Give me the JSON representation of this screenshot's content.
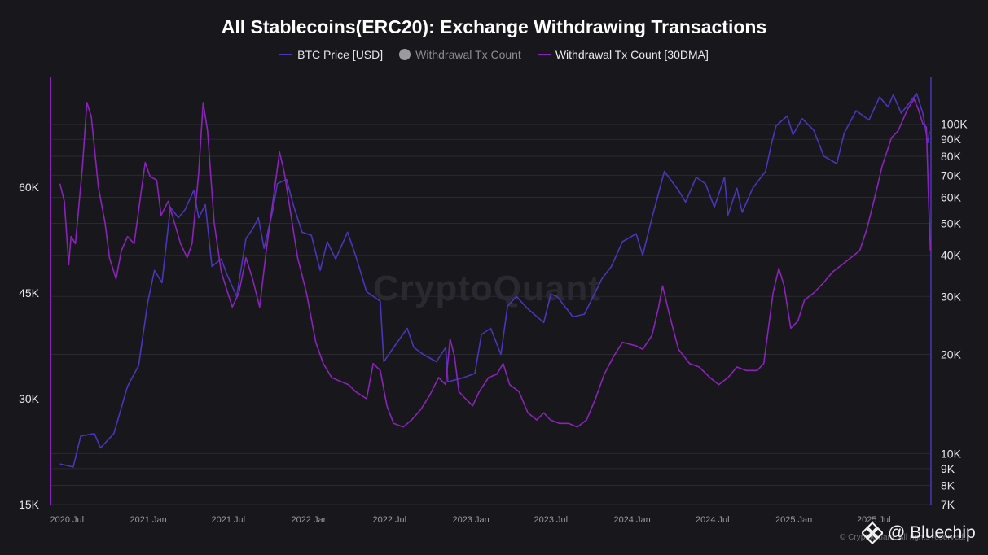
{
  "chart_data": {
    "type": "line",
    "title": "All Stablecoins(ERC20): Exchange Withdrawing Transactions",
    "legend": {
      "placement": "top-center",
      "entries": [
        {
          "label": "BTC Price [USD]",
          "color": "#4a36b8",
          "visible": true
        },
        {
          "label": "Withdrawal Tx Count",
          "color": "#9a9a9f",
          "visible": false
        },
        {
          "label": "Withdrawal Tx Count [30DMA]",
          "color": "#8a24b8",
          "visible": true
        }
      ]
    },
    "x_axis": {
      "type": "date",
      "ticks": [
        "2020 Jul",
        "2021 Jan",
        "2021 Jul",
        "2022 Jan",
        "2022 Jul",
        "2023 Jan",
        "2023 Jul",
        "2024 Jan",
        "2024 Jul",
        "2025 Jan",
        "2025 Jul"
      ],
      "range": [
        "2020-06-01",
        "2025-10-31"
      ]
    },
    "left_axis": {
      "series": "Withdrawal Tx Count [30DMA]",
      "scale": "linear",
      "ticks": [
        "15K",
        "30K",
        "45K",
        "60K"
      ],
      "tick_values": [
        15000,
        30000,
        45000,
        60000
      ],
      "ylim": [
        15000,
        75000
      ]
    },
    "right_axis": {
      "series": "BTC Price [USD]",
      "scale": "log",
      "ticks": [
        "7K",
        "8K",
        "9K",
        "10K",
        "20K",
        "30K",
        "40K",
        "50K",
        "60K",
        "70K",
        "80K",
        "90K",
        "100K"
      ],
      "tick_values": [
        7000,
        8000,
        9000,
        10000,
        20000,
        30000,
        40000,
        50000,
        60000,
        70000,
        80000,
        90000,
        100000
      ],
      "ylim": [
        7000,
        135000
      ]
    },
    "grid": true,
    "series": [
      {
        "name": "BTC Price [USD]",
        "axis": "right",
        "color": "#4a36b8",
        "points": [
          [
            "2020-06-15",
            9300
          ],
          [
            "2020-07-15",
            9100
          ],
          [
            "2020-08-01",
            11300
          ],
          [
            "2020-09-01",
            11500
          ],
          [
            "2020-09-15",
            10400
          ],
          [
            "2020-10-15",
            11500
          ],
          [
            "2020-11-15",
            16000
          ],
          [
            "2020-12-10",
            18500
          ],
          [
            "2020-12-31",
            28900
          ],
          [
            "2021-01-15",
            36000
          ],
          [
            "2021-02-01",
            33000
          ],
          [
            "2021-02-20",
            56000
          ],
          [
            "2021-03-10",
            52000
          ],
          [
            "2021-03-25",
            55000
          ],
          [
            "2021-04-14",
            63000
          ],
          [
            "2021-04-25",
            52000
          ],
          [
            "2021-05-10",
            57000
          ],
          [
            "2021-05-25",
            37000
          ],
          [
            "2021-06-15",
            39000
          ],
          [
            "2021-06-28",
            35000
          ],
          [
            "2021-07-20",
            30000
          ],
          [
            "2021-08-10",
            45000
          ],
          [
            "2021-08-25",
            48000
          ],
          [
            "2021-09-07",
            52000
          ],
          [
            "2021-09-20",
            42000
          ],
          [
            "2021-10-10",
            55000
          ],
          [
            "2021-10-20",
            66000
          ],
          [
            "2021-11-10",
            68000
          ],
          [
            "2021-11-25",
            57000
          ],
          [
            "2021-12-15",
            47000
          ],
          [
            "2022-01-05",
            46000
          ],
          [
            "2022-01-25",
            36000
          ],
          [
            "2022-02-10",
            44000
          ],
          [
            "2022-03-01",
            39000
          ],
          [
            "2022-03-28",
            47000
          ],
          [
            "2022-04-15",
            40000
          ],
          [
            "2022-05-10",
            31000
          ],
          [
            "2022-06-10",
            29000
          ],
          [
            "2022-06-18",
            19000
          ],
          [
            "2022-07-10",
            21000
          ],
          [
            "2022-08-10",
            24000
          ],
          [
            "2022-08-25",
            21000
          ],
          [
            "2022-09-15",
            20000
          ],
          [
            "2022-10-15",
            19000
          ],
          [
            "2022-11-05",
            21000
          ],
          [
            "2022-11-10",
            16500
          ],
          [
            "2022-12-15",
            17000
          ],
          [
            "2023-01-10",
            17500
          ],
          [
            "2023-01-25",
            23000
          ],
          [
            "2023-02-15",
            24000
          ],
          [
            "2023-03-10",
            20000
          ],
          [
            "2023-03-25",
            28000
          ],
          [
            "2023-04-14",
            30000
          ],
          [
            "2023-05-10",
            27500
          ],
          [
            "2023-06-15",
            25000
          ],
          [
            "2023-07-01",
            30500
          ],
          [
            "2023-07-15",
            30000
          ],
          [
            "2023-08-20",
            26000
          ],
          [
            "2023-09-15",
            26500
          ],
          [
            "2023-10-25",
            34000
          ],
          [
            "2023-11-15",
            37000
          ],
          [
            "2023-12-10",
            44000
          ],
          [
            "2024-01-10",
            46500
          ],
          [
            "2024-01-25",
            40000
          ],
          [
            "2024-02-15",
            52000
          ],
          [
            "2024-03-14",
            72000
          ],
          [
            "2024-04-15",
            63000
          ],
          [
            "2024-05-01",
            58000
          ],
          [
            "2024-05-25",
            69000
          ],
          [
            "2024-06-15",
            66000
          ],
          [
            "2024-07-05",
            56000
          ],
          [
            "2024-07-28",
            69000
          ],
          [
            "2024-08-05",
            53000
          ],
          [
            "2024-08-25",
            64000
          ],
          [
            "2024-09-06",
            54000
          ],
          [
            "2024-09-30",
            64000
          ],
          [
            "2024-10-29",
            72000
          ],
          [
            "2024-11-12",
            88000
          ],
          [
            "2024-11-22",
            99000
          ],
          [
            "2024-12-17",
            106000
          ],
          [
            "2024-12-30",
            93000
          ],
          [
            "2025-01-20",
            104000
          ],
          [
            "2025-02-15",
            96000
          ],
          [
            "2025-03-10",
            80000
          ],
          [
            "2025-04-08",
            76000
          ],
          [
            "2025-04-25",
            94000
          ],
          [
            "2025-05-22",
            110000
          ],
          [
            "2025-06-20",
            103000
          ],
          [
            "2025-07-14",
            121000
          ],
          [
            "2025-08-02",
            113000
          ],
          [
            "2025-08-14",
            123000
          ],
          [
            "2025-09-01",
            108000
          ],
          [
            "2025-10-06",
            124000
          ],
          [
            "2025-10-20",
            108000
          ],
          [
            "2025-10-31",
            88000
          ],
          [
            "2025-11-04",
            95000
          ]
        ]
      },
      {
        "name": "Withdrawal Tx Count [30DMA]",
        "axis": "left",
        "color": "#8a24b8",
        "points": [
          [
            "2020-06-15",
            60500
          ],
          [
            "2020-06-25",
            58000
          ],
          [
            "2020-07-05",
            49000
          ],
          [
            "2020-07-10",
            53000
          ],
          [
            "2020-07-20",
            52000
          ],
          [
            "2020-08-05",
            63000
          ],
          [
            "2020-08-15",
            72000
          ],
          [
            "2020-08-25",
            70000
          ],
          [
            "2020-09-10",
            60000
          ],
          [
            "2020-09-25",
            55000
          ],
          [
            "2020-10-05",
            50000
          ],
          [
            "2020-10-20",
            47000
          ],
          [
            "2020-11-01",
            51000
          ],
          [
            "2020-11-15",
            53000
          ],
          [
            "2020-11-30",
            52000
          ],
          [
            "2020-12-15",
            59000
          ],
          [
            "2020-12-25",
            63500
          ],
          [
            "2021-01-05",
            61500
          ],
          [
            "2021-01-20",
            61000
          ],
          [
            "2021-01-30",
            56000
          ],
          [
            "2021-02-15",
            58000
          ],
          [
            "2021-03-01",
            55000
          ],
          [
            "2021-03-15",
            52000
          ],
          [
            "2021-03-30",
            50000
          ],
          [
            "2021-04-10",
            52000
          ],
          [
            "2021-04-25",
            62000
          ],
          [
            "2021-05-05",
            72000
          ],
          [
            "2021-05-15",
            68000
          ],
          [
            "2021-05-30",
            55000
          ],
          [
            "2021-06-15",
            48000
          ],
          [
            "2021-06-30",
            45000
          ],
          [
            "2021-07-10",
            43000
          ],
          [
            "2021-07-25",
            45000
          ],
          [
            "2021-08-10",
            50000
          ],
          [
            "2021-08-25",
            47000
          ],
          [
            "2021-09-10",
            43000
          ],
          [
            "2021-09-25",
            51000
          ],
          [
            "2021-10-10",
            58000
          ],
          [
            "2021-10-25",
            65000
          ],
          [
            "2021-11-05",
            62000
          ],
          [
            "2021-11-20",
            56000
          ],
          [
            "2021-12-05",
            50000
          ],
          [
            "2021-12-25",
            45000
          ],
          [
            "2022-01-15",
            38000
          ],
          [
            "2022-02-01",
            35000
          ],
          [
            "2022-02-20",
            33000
          ],
          [
            "2022-03-10",
            32500
          ],
          [
            "2022-03-30",
            32000
          ],
          [
            "2022-04-15",
            31000
          ],
          [
            "2022-05-10",
            30000
          ],
          [
            "2022-05-25",
            35000
          ],
          [
            "2022-06-10",
            34000
          ],
          [
            "2022-06-25",
            29000
          ],
          [
            "2022-07-10",
            26500
          ],
          [
            "2022-08-01",
            26000
          ],
          [
            "2022-08-20",
            27000
          ],
          [
            "2022-09-10",
            28500
          ],
          [
            "2022-09-30",
            30500
          ],
          [
            "2022-10-20",
            33000
          ],
          [
            "2022-11-05",
            32000
          ],
          [
            "2022-11-15",
            38500
          ],
          [
            "2022-11-25",
            36000
          ],
          [
            "2022-12-05",
            31000
          ],
          [
            "2022-12-20",
            30000
          ],
          [
            "2023-01-05",
            29000
          ],
          [
            "2023-01-20",
            31000
          ],
          [
            "2023-02-10",
            33000
          ],
          [
            "2023-03-01",
            33500
          ],
          [
            "2023-03-15",
            35000
          ],
          [
            "2023-03-30",
            32000
          ],
          [
            "2023-04-20",
            31000
          ],
          [
            "2023-05-10",
            28000
          ],
          [
            "2023-05-30",
            27000
          ],
          [
            "2023-06-15",
            28000
          ],
          [
            "2023-06-30",
            27000
          ],
          [
            "2023-07-20",
            26500
          ],
          [
            "2023-08-10",
            26500
          ],
          [
            "2023-08-30",
            26000
          ],
          [
            "2023-09-20",
            27000
          ],
          [
            "2023-10-10",
            30000
          ],
          [
            "2023-10-30",
            33500
          ],
          [
            "2023-11-20",
            36000
          ],
          [
            "2023-12-10",
            38000
          ],
          [
            "2024-01-10",
            37500
          ],
          [
            "2024-01-25",
            37000
          ],
          [
            "2024-02-15",
            39000
          ],
          [
            "2024-03-01",
            43000
          ],
          [
            "2024-03-10",
            46000
          ],
          [
            "2024-03-25",
            42000
          ],
          [
            "2024-04-15",
            37000
          ],
          [
            "2024-05-10",
            35000
          ],
          [
            "2024-06-01",
            34500
          ],
          [
            "2024-06-25",
            33000
          ],
          [
            "2024-07-15",
            32000
          ],
          [
            "2024-08-05",
            33000
          ],
          [
            "2024-08-25",
            34500
          ],
          [
            "2024-09-15",
            34000
          ],
          [
            "2024-10-10",
            34000
          ],
          [
            "2024-10-25",
            35000
          ],
          [
            "2024-11-15",
            45000
          ],
          [
            "2024-11-28",
            48500
          ],
          [
            "2024-12-10",
            46000
          ],
          [
            "2024-12-25",
            40000
          ],
          [
            "2025-01-10",
            41000
          ],
          [
            "2025-01-25",
            44000
          ],
          [
            "2025-02-15",
            45000
          ],
          [
            "2025-03-10",
            46500
          ],
          [
            "2025-03-30",
            48000
          ],
          [
            "2025-04-20",
            49000
          ],
          [
            "2025-05-10",
            50000
          ],
          [
            "2025-05-30",
            51000
          ],
          [
            "2025-06-15",
            54000
          ],
          [
            "2025-07-01",
            58000
          ],
          [
            "2025-07-20",
            63000
          ],
          [
            "2025-08-10",
            67000
          ],
          [
            "2025-08-25",
            68000
          ],
          [
            "2025-09-15",
            71000
          ],
          [
            "2025-09-30",
            72500
          ],
          [
            "2025-10-10",
            71000
          ],
          [
            "2025-10-20",
            69000
          ],
          [
            "2025-10-28",
            68500
          ],
          [
            "2025-11-02",
            58000
          ],
          [
            "2025-11-06",
            51000
          ]
        ]
      }
    ]
  },
  "watermark": "CryptoQuant",
  "footer": {
    "copyright": "© CryptoQuant. All rights reserved.",
    "brand": "@ Bluechip"
  }
}
